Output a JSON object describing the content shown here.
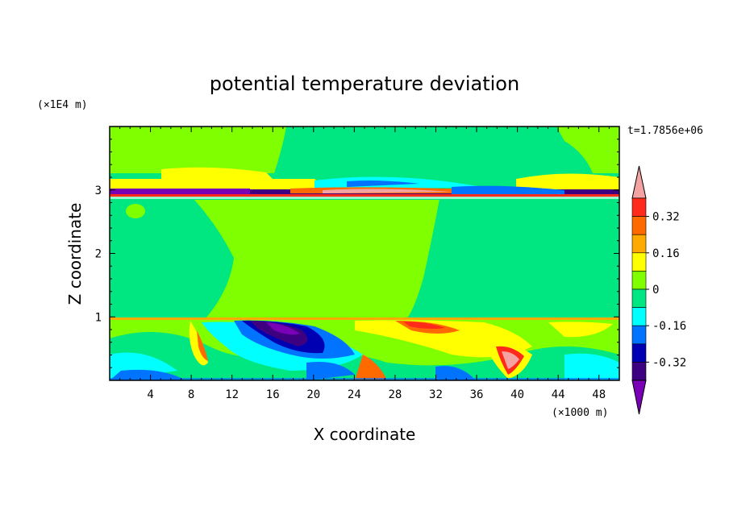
{
  "chart_data": {
    "type": "heatmap",
    "title": "potential temperature deviation",
    "xlabel": "X coordinate",
    "ylabel": "Z coordinate",
    "x_unit": "(×1000 m)",
    "y_unit": "(×1E4 m)",
    "time_label": "t=1.7856e+06",
    "x_ticks": [
      4,
      8,
      12,
      16,
      20,
      24,
      28,
      32,
      36,
      40,
      44,
      48
    ],
    "y_ticks": [
      1,
      2,
      3
    ],
    "xlim": [
      0,
      50
    ],
    "ylim": [
      0,
      4
    ],
    "colorbar": {
      "labels": [
        "0.32",
        "0.16",
        "0",
        "-0.16",
        "-0.32"
      ],
      "label_values": [
        0.32,
        0.16,
        0,
        -0.16,
        -0.32
      ],
      "colors": [
        "#f4a3a3",
        "#ff2a1a",
        "#ff6a00",
        "#ffaa00",
        "#ffff00",
        "#80ff00",
        "#00e680",
        "#00ffff",
        "#0073ff",
        "#0000b3",
        "#3d0080",
        "#7a00b8"
      ]
    }
  }
}
